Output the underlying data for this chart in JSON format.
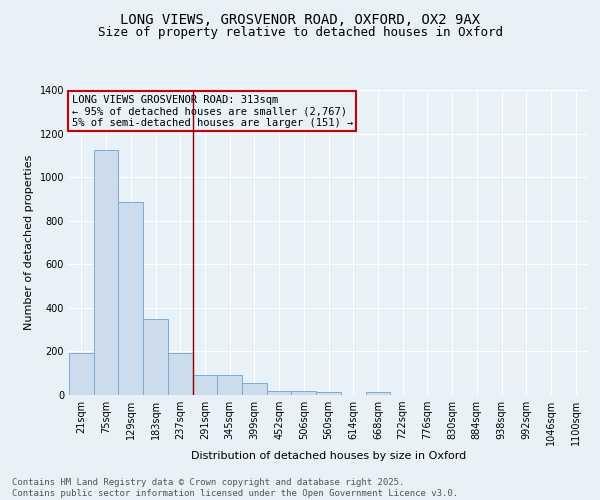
{
  "title_line1": "LONG VIEWS, GROSVENOR ROAD, OXFORD, OX2 9AX",
  "title_line2": "Size of property relative to detached houses in Oxford",
  "xlabel": "Distribution of detached houses by size in Oxford",
  "ylabel": "Number of detached properties",
  "bar_fill_color": "#cddcec",
  "bar_edge_color": "#7aabcf",
  "background_color": "#e8f0f8",
  "grid_color": "#ffffff",
  "categories": [
    "21sqm",
    "75sqm",
    "129sqm",
    "183sqm",
    "237sqm",
    "291sqm",
    "345sqm",
    "399sqm",
    "452sqm",
    "506sqm",
    "560sqm",
    "614sqm",
    "668sqm",
    "722sqm",
    "776sqm",
    "830sqm",
    "884sqm",
    "938sqm",
    "992sqm",
    "1046sqm",
    "1100sqm"
  ],
  "values": [
    195,
    1125,
    885,
    350,
    195,
    90,
    90,
    55,
    20,
    20,
    15,
    0,
    12,
    0,
    0,
    0,
    0,
    0,
    0,
    0,
    0
  ],
  "ylim_max": 1400,
  "yticks": [
    0,
    200,
    400,
    600,
    800,
    1000,
    1200,
    1400
  ],
  "vline_x": 4.5,
  "vline_color": "#8b0000",
  "ann_text_line1": "LONG VIEWS GROSVENOR ROAD: 313sqm",
  "ann_text_line2": "← 95% of detached houses are smaller (2,767)",
  "ann_text_line3": "5% of semi-detached houses are larger (151) →",
  "ann_box_edgecolor": "#cc0000",
  "ann_box_facecolor": "#e8f0f8",
  "footer_line1": "Contains HM Land Registry data © Crown copyright and database right 2025.",
  "footer_line2": "Contains public sector information licensed under the Open Government Licence v3.0.",
  "title_fontsize": 10,
  "subtitle_fontsize": 9,
  "tick_fontsize": 7,
  "ylabel_fontsize": 8,
  "xlabel_fontsize": 8,
  "ann_fontsize": 7.5,
  "footer_fontsize": 6.5
}
